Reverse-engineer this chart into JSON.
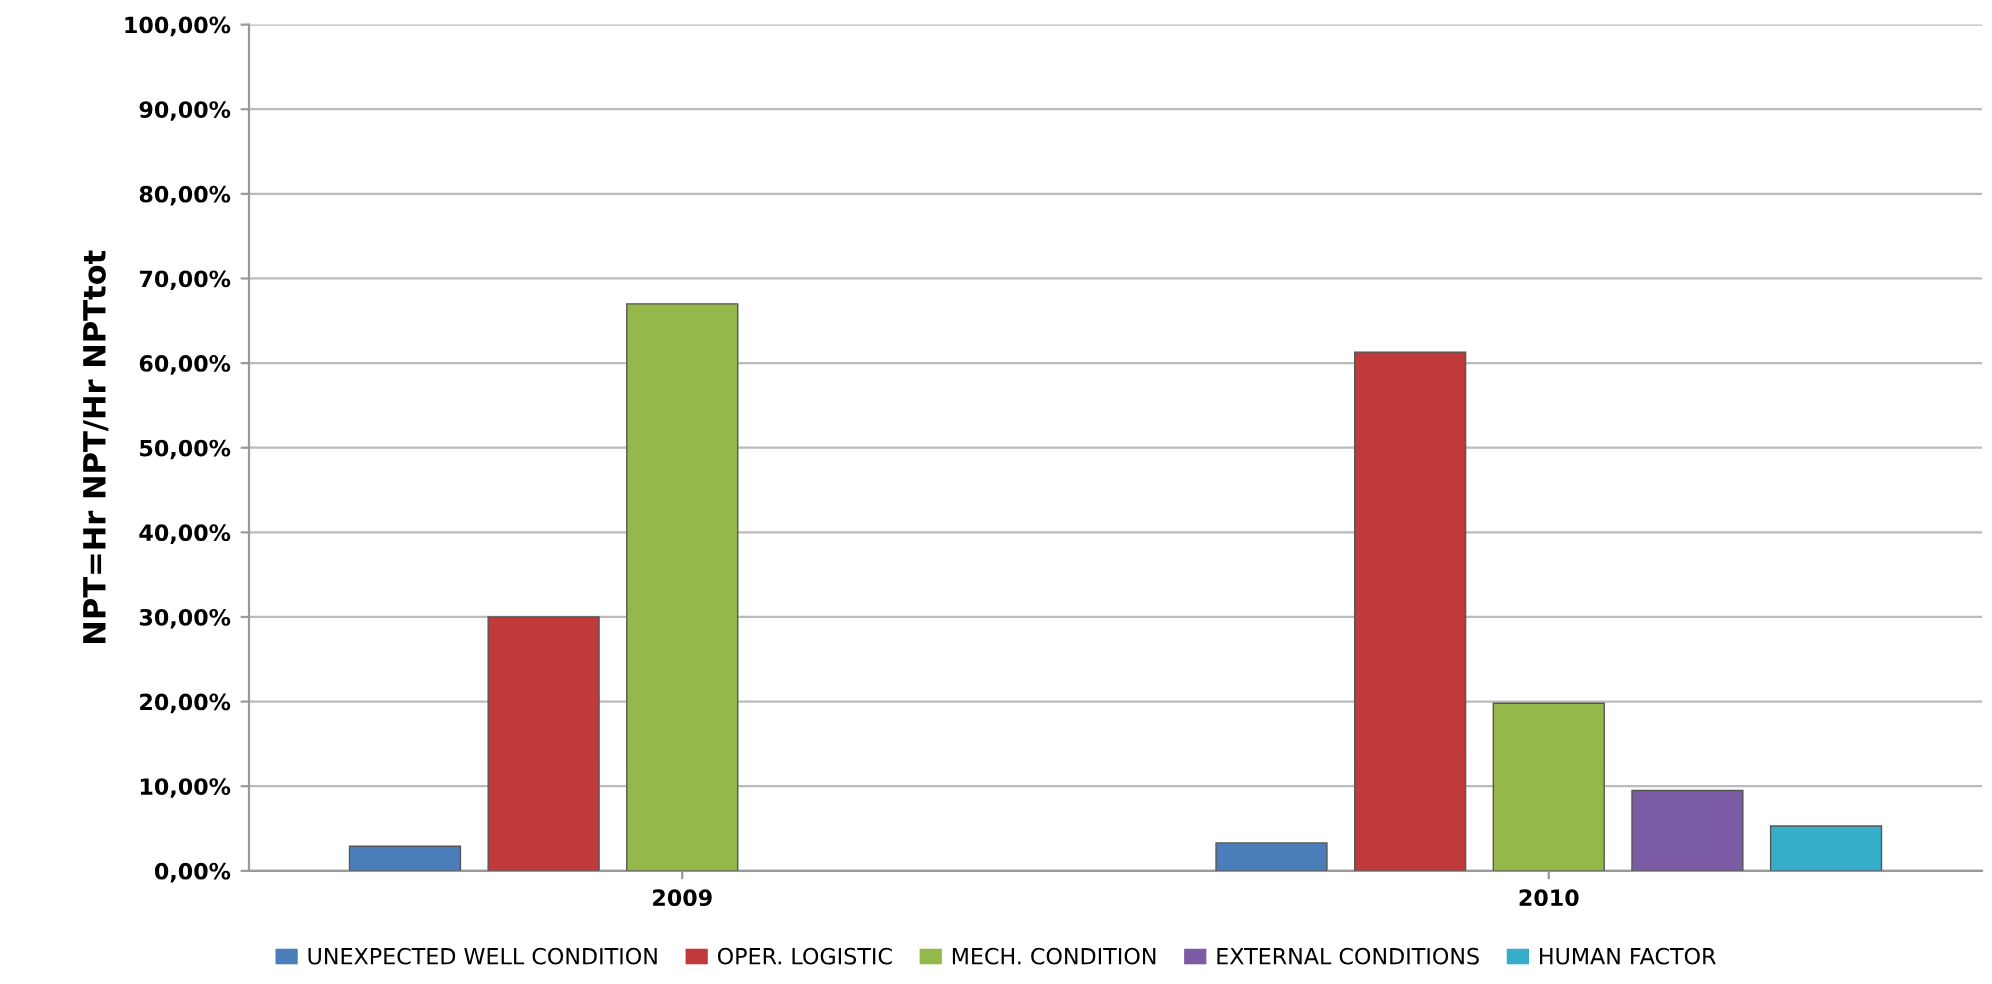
{
  "chart_data": {
    "type": "bar",
    "ylabel": "NPT=Hr NPT/Hr NPTtot",
    "categories": [
      "2009",
      "2010"
    ],
    "series": [
      {
        "name": "UNEXPECTED WELL CONDITION",
        "color": "#4a7ebb",
        "values": [
          2.9,
          3.3
        ]
      },
      {
        "name": "OPER. LOGISTIC",
        "color": "#c0393b",
        "values": [
          30,
          61.3
        ]
      },
      {
        "name": "MECH. CONDITION",
        "color": "#94b84a",
        "values": [
          67,
          19.8
        ]
      },
      {
        "name": "EXTERNAL CONDITIONS",
        "color": "#7b5ba3",
        "values": [
          null,
          9.5
        ]
      },
      {
        "name": "HUMAN FACTOR",
        "color": "#36aec9",
        "values": [
          null,
          5.3
        ]
      }
    ],
    "ylim": [
      0,
      100
    ],
    "yticks": [
      {
        "value": 0,
        "label": "0,00%"
      },
      {
        "value": 10,
        "label": "10,00%"
      },
      {
        "value": 20,
        "label": "20,00%"
      },
      {
        "value": 30,
        "label": "30,00%"
      },
      {
        "value": 40,
        "label": "40,00%"
      },
      {
        "value": 50,
        "label": "50,00%"
      },
      {
        "value": 60,
        "label": "60,00%"
      },
      {
        "value": 70,
        "label": "70,00%"
      },
      {
        "value": 80,
        "label": "80,00%"
      },
      {
        "value": 90,
        "label": "90,00%"
      },
      {
        "value": 100,
        "label": "100,00%"
      }
    ],
    "grid": "y",
    "legend": "bottom"
  }
}
